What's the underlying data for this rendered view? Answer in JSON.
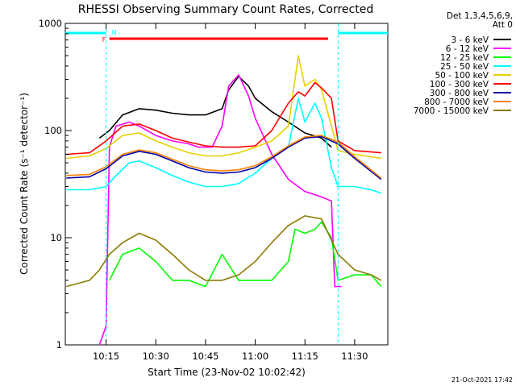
{
  "chart_data": {
    "type": "line",
    "title": "RHESSI Observing Summary Count Rates, Corrected",
    "xlabel": "Start Time (23-Nov-02 10:02:42)",
    "ylabel": "Corrected Count Rate (s⁻¹ detector⁻¹)",
    "y_scale": "log",
    "ylim": [
      1,
      1000
    ],
    "xlim": [
      "10:02:42",
      "11:40:00"
    ],
    "x_ticks": [
      "10:15",
      "10:30",
      "10:45",
      "11:00",
      "11:15",
      "11:30"
    ],
    "y_ticks": [
      "1",
      "10",
      "100",
      "1000"
    ],
    "legend_header": [
      "Det 1,3,4,5,6,9,",
      "Att 0"
    ],
    "legend_position": "outside-right",
    "flag_labels": {
      "flare": "F",
      "night": "N"
    },
    "series": [
      {
        "name": "3 - 6 keV",
        "color": "#000000",
        "x": [
          "10:13",
          "10:16",
          "10:20",
          "10:25",
          "10:30",
          "10:35",
          "10:40",
          "10:45",
          "10:50",
          "10:52",
          "10:55",
          "10:58",
          "11:00",
          "11:05",
          "11:10",
          "11:15",
          "11:20",
          "11:23"
        ],
        "y": [
          85,
          100,
          140,
          160,
          155,
          145,
          140,
          140,
          160,
          240,
          320,
          260,
          200,
          150,
          120,
          95,
          85,
          70
        ]
      },
      {
        "name": "6 - 12 keV",
        "color": "#ff00ff",
        "x": [
          "10:13",
          "10:15",
          "10:16",
          "10:18",
          "10:22",
          "10:25",
          "10:30",
          "10:35",
          "10:40",
          "10:43",
          "10:47",
          "10:50",
          "10:52",
          "10:55",
          "10:58",
          "11:00",
          "11:05",
          "11:10",
          "11:15",
          "11:20",
          "11:23",
          "11:24",
          "11:25",
          "11:26"
        ],
        "y": [
          1,
          1.5,
          70,
          110,
          120,
          110,
          90,
          80,
          75,
          70,
          70,
          110,
          260,
          330,
          210,
          130,
          60,
          35,
          27,
          24,
          22,
          3.5,
          3.5,
          3.5
        ]
      },
      {
        "name": "12 - 25 keV",
        "color": "#00ff00",
        "x": [
          "10:16",
          "10:20",
          "10:25",
          "10:30",
          "10:35",
          "10:40",
          "10:45",
          "10:50",
          "10:55",
          "11:00",
          "11:05",
          "11:10",
          "11:12",
          "11:15",
          "11:18",
          "11:20",
          "11:23",
          "11:25",
          "11:30",
          "11:35",
          "11:38"
        ],
        "y": [
          4,
          7,
          8,
          6,
          4,
          4,
          3.5,
          7,
          4,
          4,
          4,
          6,
          12,
          11,
          12,
          14,
          10,
          4,
          4.5,
          4.5,
          3.5
        ]
      },
      {
        "name": "25 - 50 keV",
        "color": "#00ffff",
        "x": [
          "10:03",
          "10:10",
          "10:15",
          "10:18",
          "10:22",
          "10:25",
          "10:30",
          "10:35",
          "10:40",
          "10:45",
          "10:50",
          "10:55",
          "11:00",
          "11:05",
          "11:10",
          "11:13",
          "11:15",
          "11:18",
          "11:20",
          "11:23",
          "11:25",
          "11:28",
          "11:30",
          "11:35",
          "11:38"
        ],
        "y": [
          28,
          28,
          30,
          38,
          50,
          52,
          45,
          38,
          33,
          30,
          30,
          32,
          40,
          55,
          70,
          200,
          120,
          180,
          130,
          45,
          30,
          30,
          30,
          28,
          26
        ]
      },
      {
        "name": "50 - 100 keV",
        "color": "#e6d000",
        "x": [
          "10:03",
          "10:10",
          "10:15",
          "10:20",
          "10:25",
          "10:30",
          "10:35",
          "10:40",
          "10:45",
          "10:50",
          "10:55",
          "11:00",
          "11:05",
          "11:10",
          "11:13",
          "11:15",
          "11:18",
          "11:20",
          "11:23",
          "11:25",
          "11:30",
          "11:38"
        ],
        "y": [
          55,
          58,
          68,
          90,
          95,
          80,
          70,
          62,
          58,
          58,
          62,
          70,
          80,
          110,
          500,
          260,
          300,
          240,
          110,
          65,
          60,
          55
        ]
      },
      {
        "name": "100 - 300 keV",
        "color": "#ff0000",
        "x": [
          "10:03",
          "10:10",
          "10:15",
          "10:20",
          "10:25",
          "10:30",
          "10:35",
          "10:40",
          "10:45",
          "10:50",
          "10:55",
          "11:00",
          "11:05",
          "11:10",
          "11:13",
          "11:15",
          "11:18",
          "11:20",
          "11:23",
          "11:25",
          "11:30",
          "11:38"
        ],
        "y": [
          60,
          62,
          80,
          110,
          115,
          100,
          85,
          78,
          72,
          70,
          70,
          72,
          100,
          180,
          230,
          210,
          280,
          250,
          200,
          80,
          65,
          62
        ]
      },
      {
        "name": "300 - 800 keV",
        "color": "#0000aa",
        "x": [
          "10:03",
          "10:10",
          "10:15",
          "10:20",
          "10:25",
          "10:30",
          "10:35",
          "10:40",
          "10:45",
          "10:50",
          "10:55",
          "11:00",
          "11:05",
          "11:10",
          "11:15",
          "11:20",
          "11:25",
          "11:30",
          "11:38"
        ],
        "y": [
          36,
          37,
          44,
          58,
          64,
          60,
          52,
          45,
          41,
          40,
          41,
          45,
          55,
          70,
          85,
          88,
          75,
          55,
          35
        ]
      },
      {
        "name": "800 - 7000 keV",
        "color": "#ff8000",
        "x": [
          "10:03",
          "10:10",
          "10:15",
          "10:20",
          "10:25",
          "10:30",
          "10:35",
          "10:40",
          "10:45",
          "10:50",
          "10:55",
          "11:00",
          "11:05",
          "11:10",
          "11:15",
          "11:20",
          "11:25",
          "11:30",
          "11:38"
        ],
        "y": [
          38,
          39,
          46,
          60,
          66,
          62,
          54,
          47,
          43,
          42,
          43,
          47,
          57,
          72,
          87,
          90,
          78,
          57,
          36
        ]
      },
      {
        "name": "7000 - 15000 keV",
        "color": "#8b7a00",
        "x": [
          "10:03",
          "10:10",
          "10:13",
          "10:16",
          "10:20",
          "10:25",
          "10:30",
          "10:35",
          "10:40",
          "10:45",
          "10:50",
          "10:55",
          "11:00",
          "11:05",
          "11:10",
          "11:15",
          "11:20",
          "11:25",
          "11:30",
          "11:35",
          "11:38"
        ],
        "y": [
          3.5,
          4,
          5,
          7,
          9,
          11,
          9.5,
          7,
          5,
          4,
          4,
          4.5,
          6,
          9,
          13,
          16,
          15,
          7,
          5,
          4.5,
          4
        ]
      }
    ]
  },
  "footer_timestamp": "21-Oct-2021 17:42"
}
